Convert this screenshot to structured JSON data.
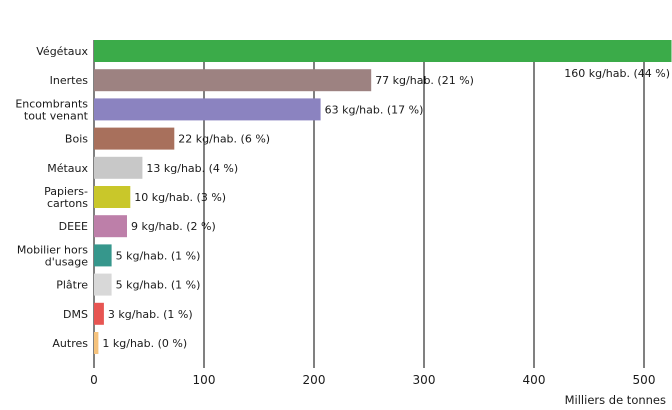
{
  "chart_data": {
    "type": "bar",
    "orientation": "horizontal",
    "categories": [
      "Végétaux",
      "Inertes",
      "Encombrants\ntout venant",
      "Bois",
      "Métaux",
      "Papiers-\ncartons",
      "DEEE",
      "Mobilier hors\nd'usage",
      "Plâtre",
      "DMS",
      "Autres"
    ],
    "values": [
      525,
      252,
      206,
      73,
      44,
      33,
      30,
      16,
      16,
      9,
      4
    ],
    "value_labels": [
      "160 kg/hab. (44 %)",
      "77 kg/hab. (21 %)",
      "63 kg/hab. (17 %)",
      "22 kg/hab. (6 %)",
      "13 kg/hab. (4 %)",
      "10 kg/hab. (3 %)",
      "9 kg/hab. (2 %)",
      "5 kg/hab. (1 %)",
      "5 kg/hab. (1 %)",
      "3 kg/hab. (1 %)",
      "1 kg/hab. (0 %)"
    ],
    "colors": [
      "#3bab49",
      "#9d8281",
      "#8b83c0",
      "#a8705c",
      "#c8c8c8",
      "#c9c72a",
      "#bd7fa9",
      "#36978c",
      "#d8d8d8",
      "#e75552",
      "#f5c27c"
    ],
    "xticks": [
      0,
      100,
      200,
      300,
      400,
      500
    ],
    "xlim": [
      0,
      525
    ],
    "xlabel": "Milliers de tonnes",
    "grid": "vertical"
  }
}
